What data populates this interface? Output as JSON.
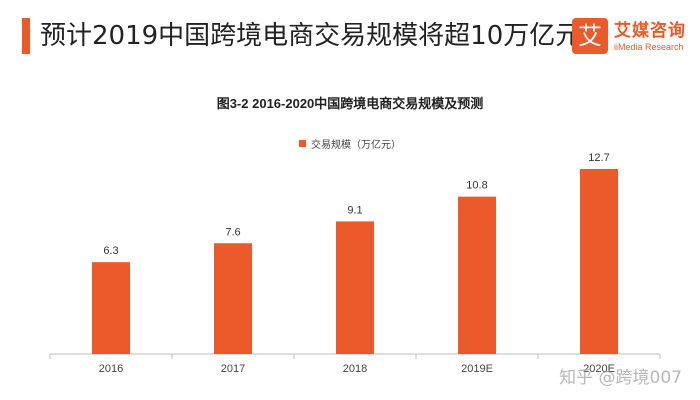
{
  "header": {
    "headline": "预计2019中国跨境电商交易规模将超10万亿元",
    "accent_color": "#ea5a2a"
  },
  "brand": {
    "logo_char": "艾",
    "name": "艾媒咨询",
    "subtitle": "iiMedia Research"
  },
  "watermark": "知乎 @跨境007",
  "chart_data": {
    "type": "bar",
    "title": "图3-2 2016-2020中国跨境电商交易规模及预测",
    "categories": [
      "2016",
      "2017",
      "2018",
      "2019E",
      "2020E"
    ],
    "series": [
      {
        "name": "交易规模（万亿元）",
        "values": [
          6.3,
          7.6,
          9.1,
          10.8,
          12.7
        ],
        "color": "#ea5a2a"
      }
    ],
    "value_labels": [
      "6.3",
      "7.6",
      "9.1",
      "10.8",
      "12.7"
    ],
    "ylim": [
      0,
      14
    ],
    "legend_position": "top-center",
    "grid": false,
    "xlabel": "",
    "ylabel": ""
  }
}
